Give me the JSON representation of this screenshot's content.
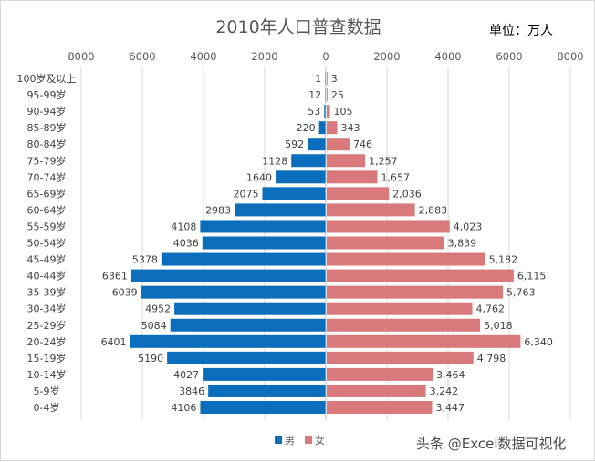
{
  "page": {
    "title": "2010年人口普查数据",
    "unit_note": "单位：万人",
    "watermark": "头条 @Excel数据可视化"
  },
  "colors": {
    "male": "#0a6ebd",
    "female": "#d9797b",
    "grid": "#d9d9d9",
    "text": "#595959",
    "axis": "#bfbfbf"
  },
  "chart_data": {
    "type": "bar",
    "orientation": "horizontal",
    "title": "2010年人口普查数据",
    "categories": [
      "100岁及以上",
      "95-99岁",
      "90-94岁",
      "85-89岁",
      "80-84岁",
      "75-79岁",
      "70-74岁",
      "65-69岁",
      "60-64岁",
      "55-59岁",
      "50-54岁",
      "45-49岁",
      "40-44岁",
      "35-39岁",
      "30-34岁",
      "25-29岁",
      "20-24岁",
      "15-19岁",
      "10-14岁",
      "5-9岁",
      "0-4岁"
    ],
    "series": [
      {
        "name": "男",
        "values": [
          1,
          12,
          53,
          220,
          592,
          1128,
          1640,
          2075,
          2983,
          4108,
          4036,
          5378,
          6361,
          6039,
          4952,
          5084,
          6401,
          5190,
          4027,
          3846,
          4106
        ],
        "labels": [
          "1",
          "12",
          "53",
          "220",
          "592",
          "1128",
          "1640",
          "2075",
          "2983",
          "4108",
          "4036",
          "5378",
          "6361",
          "6039",
          "4952",
          "5084",
          "6401",
          "5190",
          "4027",
          "3846",
          "4106"
        ]
      },
      {
        "name": "女",
        "values": [
          3,
          25,
          105,
          343,
          746,
          1257,
          1657,
          2036,
          2883,
          4023,
          3839,
          5182,
          6115,
          5763,
          4762,
          5018,
          6340,
          4798,
          3464,
          3242,
          3447
        ],
        "labels": [
          "3",
          "25",
          "105",
          "343",
          "746",
          "1,257",
          "1,657",
          "2,036",
          "2,883",
          "4,023",
          "3,839",
          "5,182",
          "6,115",
          "5,763",
          "4,762",
          "5,018",
          "6,340",
          "4,798",
          "3,464",
          "3,242",
          "3,447"
        ]
      }
    ],
    "x_ticks": [
      "8000",
      "6000",
      "4000",
      "2000",
      "0",
      "2000",
      "4000",
      "6000",
      "8000"
    ],
    "xlim": [
      -8000,
      8000
    ],
    "grid": true,
    "legend_position": "bottom"
  }
}
